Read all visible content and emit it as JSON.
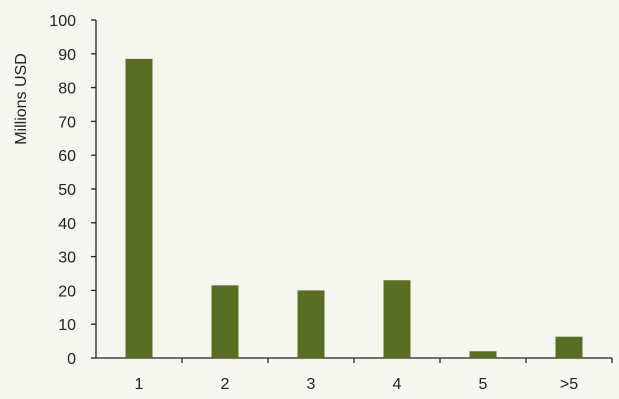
{
  "chart_data": {
    "type": "bar",
    "categories": [
      "1",
      "2",
      "3",
      "4",
      "5",
      ">5"
    ],
    "values": [
      88.5,
      21.5,
      20.0,
      23.0,
      2.0,
      6.3
    ],
    "title": "",
    "xlabel": "",
    "ylabel": "Millions USD",
    "ylim": [
      0,
      100
    ],
    "yticks": [
      "0",
      "10",
      "20",
      "30",
      "40",
      "50",
      "60",
      "70",
      "80",
      "90",
      "100"
    ],
    "grid": false,
    "legend": "none",
    "bar_color": "#596d23",
    "axis_color": "#222222",
    "background_color": "#f6f6f1"
  }
}
